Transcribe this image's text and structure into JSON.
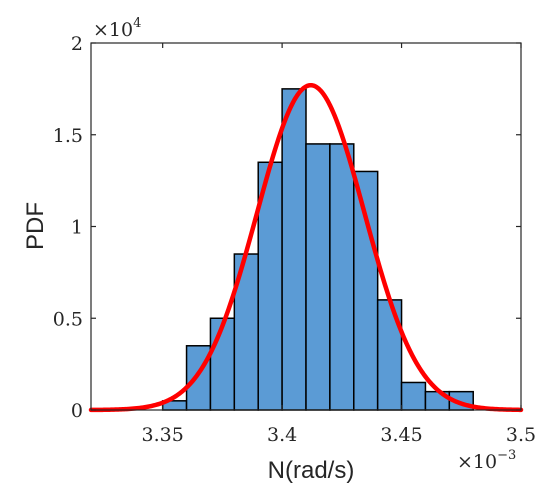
{
  "chart_data": {
    "type": "bar",
    "subtype": "histogram-with-fitted-normal-pdf",
    "xlabel": "N(rad/s)",
    "ylabel": "PDF",
    "x_multiplier_label": "×10",
    "x_multiplier_exponent": "−3",
    "y_multiplier_label": "×10",
    "y_multiplier_exponent": "4",
    "xlim": [
      3.32,
      3.5
    ],
    "ylim": [
      0,
      2
    ],
    "xticks": [
      {
        "value": 3.35,
        "label": "3.35"
      },
      {
        "value": 3.4,
        "label": "3.4"
      },
      {
        "value": 3.45,
        "label": "3.45"
      },
      {
        "value": 3.5,
        "label": "3.5"
      }
    ],
    "yticks": [
      {
        "value": 0,
        "label": "0"
      },
      {
        "value": 0.5,
        "label": "0.5"
      },
      {
        "value": 1,
        "label": "1"
      },
      {
        "value": 1.5,
        "label": "1.5"
      },
      {
        "value": 2,
        "label": "2"
      }
    ],
    "bin_edges": [
      3.35,
      3.36,
      3.37,
      3.38,
      3.39,
      3.4,
      3.41,
      3.42,
      3.43,
      3.44,
      3.45,
      3.46,
      3.47,
      3.48
    ],
    "values": [
      0.05,
      0.35,
      0.5,
      0.85,
      1.35,
      1.75,
      1.45,
      1.45,
      1.3,
      0.6,
      0.15,
      0.1,
      0.1
    ],
    "fit": {
      "mean": 3.412,
      "peak": 1.77,
      "std": 0.0225
    },
    "bar_color": "#5b9bd5",
    "curve_color": "#ff0000",
    "grid": false,
    "box": true
  }
}
